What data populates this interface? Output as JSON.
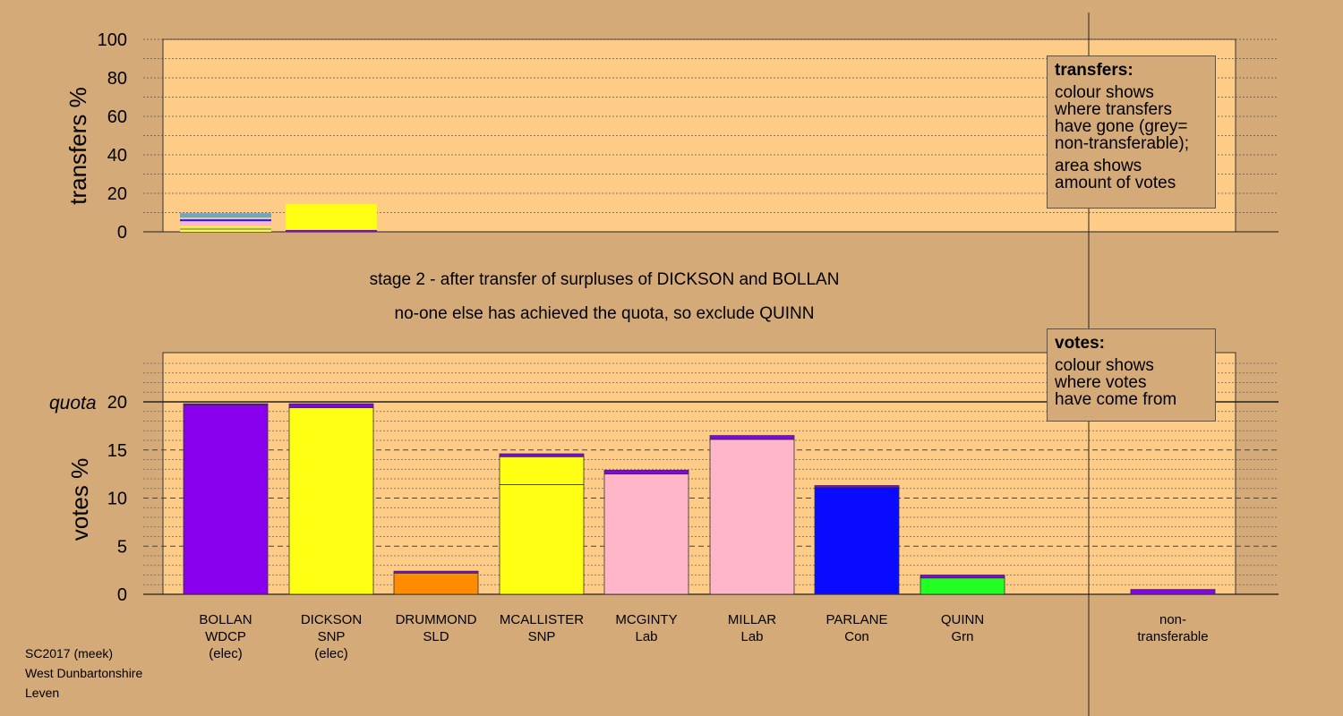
{
  "chart_data": [
    {
      "type": "bar",
      "ylabel": "transfers %",
      "ylim": [
        0,
        100
      ],
      "yticks": [
        0,
        20,
        40,
        60,
        80,
        100
      ],
      "bars": [
        {
          "category": "BOLLAN",
          "stack": [
            {
              "color": "#ffff14",
              "value": 1.0
            },
            {
              "color": "#a0a0a0",
              "value": 1.0
            },
            {
              "color": "#ffff14",
              "value": 1.0
            },
            {
              "color": "#ffb6c8",
              "value": 2.5
            },
            {
              "color": "#1f1fff",
              "value": 1.0
            },
            {
              "color": "#ffb6c8",
              "value": 1.0
            },
            {
              "color": "#3cbf6e",
              "value": 0.7
            },
            {
              "color": "#6fa0d8",
              "value": 1.5
            }
          ]
        },
        {
          "category": "DICKSON",
          "stack": [
            {
              "color": "#8800ee",
              "value": 1.0
            },
            {
              "color": "#ffff14",
              "value": 13.5
            }
          ]
        }
      ]
    },
    {
      "type": "bar",
      "ylabel": "votes %",
      "ylim": [
        0,
        25
      ],
      "yticks": [
        0,
        5,
        10,
        15,
        20
      ],
      "quota": 20,
      "quota_label": "quota",
      "categories": [
        "BOLLAN",
        "DICKSON",
        "DRUMMOND",
        "MCALLISTER",
        "MCGINTY",
        "MILLAR",
        "PARLANE",
        "QUINN",
        "",
        "non-"
      ],
      "bars": [
        {
          "label": [
            "BOLLAN",
            "WDCP",
            "(elec)"
          ],
          "stack": [
            {
              "color": "#8800ee",
              "value": 19.7
            },
            {
              "color": "#8800ee",
              "value": 0.1
            }
          ]
        },
        {
          "label": [
            "DICKSON",
            "SNP",
            "(elec)"
          ],
          "stack": [
            {
              "color": "#ffff14",
              "value": 19.4
            },
            {
              "color": "#8800ee",
              "value": 0.4
            }
          ]
        },
        {
          "label": [
            "DRUMMOND",
            "SLD"
          ],
          "stack": [
            {
              "color": "#ff8c00",
              "value": 2.2
            },
            {
              "color": "#8800ee",
              "value": 0.2
            }
          ]
        },
        {
          "label": [
            "MCALLISTER",
            "SNP"
          ],
          "stack": [
            {
              "color": "#ffff14",
              "value": 11.4
            },
            {
              "color": "#ffff14",
              "value": 2.9
            },
            {
              "color": "#8800ee",
              "value": 0.3
            }
          ]
        },
        {
          "label": [
            "MCGINTY",
            "Lab"
          ],
          "stack": [
            {
              "color": "#ffb6c8",
              "value": 12.5
            },
            {
              "color": "#8800ee",
              "value": 0.4
            }
          ]
        },
        {
          "label": [
            "MILLAR",
            "Lab"
          ],
          "stack": [
            {
              "color": "#ffb6c8",
              "value": 16.1
            },
            {
              "color": "#8800ee",
              "value": 0.4
            }
          ]
        },
        {
          "label": [
            "PARLANE",
            "Con"
          ],
          "stack": [
            {
              "color": "#0a0aff",
              "value": 11.1
            },
            {
              "color": "#8800ee",
              "value": 0.2
            }
          ]
        },
        {
          "label": [
            "QUINN",
            "Grn"
          ],
          "stack": [
            {
              "color": "#22ff22",
              "value": 1.7
            },
            {
              "color": "#8800ee",
              "value": 0.3
            }
          ]
        },
        {
          "label": [
            "non-",
            "transferable"
          ],
          "stack": [
            {
              "color": "#8800ee",
              "value": 0.5
            }
          ]
        }
      ]
    }
  ],
  "stage_text": {
    "line1": "stage 2 - after transfer of surpluses of DICKSON and BOLLAN",
    "line2": "no-one else has achieved the quota, so exclude QUINN"
  },
  "legend_transfers": {
    "title": "transfers:",
    "line1": "colour shows",
    "line2": "where transfers",
    "line3": "have gone (grey=",
    "line4": "non-transferable);",
    "line5": "area shows",
    "line6": "amount of votes"
  },
  "legend_votes": {
    "title": "votes:",
    "line1": "colour shows",
    "line2": "where votes",
    "line3": "have come from"
  },
  "footer": {
    "line1": "SC2017 (meek)",
    "line2": "West Dunbartonshire",
    "line3": "Leven"
  },
  "colors": {
    "background": "#d4aa78",
    "plot_area": "#ffcc88"
  }
}
